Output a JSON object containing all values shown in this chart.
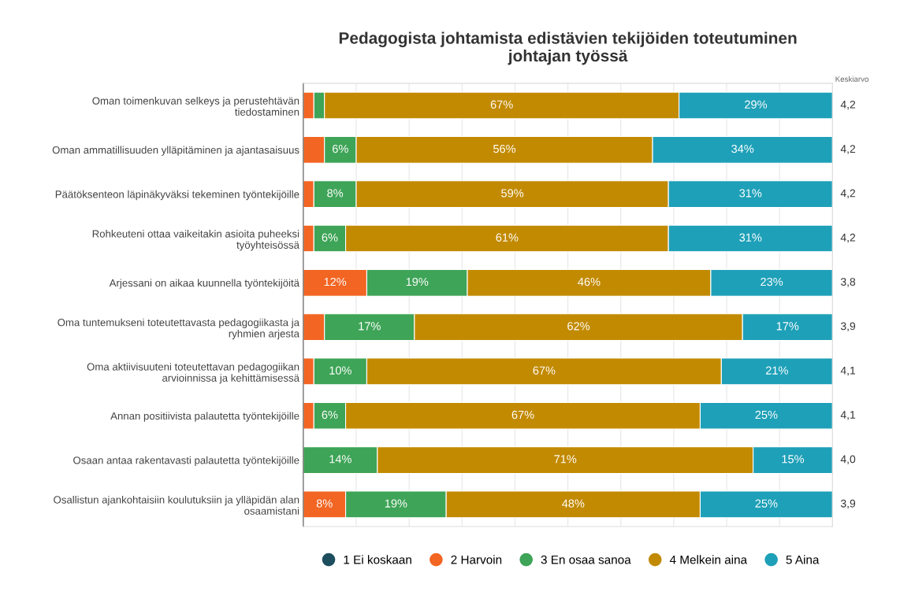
{
  "chart_data": {
    "type": "bar",
    "orientation": "horizontal",
    "stacked": true,
    "title": "Pedagogista johtamista edistävien tekijöiden toteutuminen\njohtajan työssä",
    "categories": [
      "Oman toimenkuvan selkeys ja perustehtävän\ntiedostaminen",
      "Oman ammatillisuuden ylläpitäminen ja ajantasaisuus",
      "Päätöksenteon läpinäkyväksi tekeminen työntekijöille",
      "Rohkeuteni ottaa vaikeitakin asioita puheeksi\ntyöyhteisössä",
      "Arjessani on aikaa kuunnella työntekijöitä",
      "Oma tuntemukseni toteutettavasta pedagogiikasta ja\nryhmien arjesta",
      "Oma aktiivisuuteni toteutettavan pedagogiikan\narvioinnissa ja kehittämisessä",
      "Annan positiivista palautetta työntekijöille",
      "Osaan antaa rakentavasti palautetta työntekijöille",
      "Osallistun ajankohtaisiin koulutuksiin ja ylläpidän alan\nosaamistani"
    ],
    "series": [
      {
        "name": "1 Ei koskaan",
        "color": "#1d4e5e",
        "values": [
          0,
          0,
          0,
          0,
          0,
          0,
          0,
          0,
          0,
          0
        ],
        "value_labels": [
          null,
          null,
          null,
          null,
          null,
          null,
          null,
          null,
          null,
          null
        ]
      },
      {
        "name": "2 Harvoin",
        "color": "#f26522",
        "values": [
          2,
          4,
          2,
          2,
          12,
          4,
          2,
          2,
          0,
          8
        ],
        "value_labels": [
          null,
          null,
          null,
          null,
          "12%",
          null,
          null,
          null,
          null,
          "8%"
        ]
      },
      {
        "name": "3 En osaa sanoa",
        "color": "#3ea457",
        "values": [
          2,
          6,
          8,
          6,
          19,
          17,
          10,
          6,
          14,
          19
        ],
        "value_labels": [
          null,
          "6%",
          "8%",
          "6%",
          "19%",
          "17%",
          "10%",
          "6%",
          "14%",
          "19%"
        ]
      },
      {
        "name": "4 Melkein aina",
        "color": "#c28a00",
        "values": [
          67,
          56,
          59,
          61,
          46,
          62,
          67,
          67,
          71,
          48
        ],
        "value_labels": [
          "67%",
          "56%",
          "59%",
          "61%",
          "46%",
          "62%",
          "67%",
          "67%",
          "71%",
          "48%"
        ]
      },
      {
        "name": "5 Aina",
        "color": "#1ea0b8",
        "values": [
          29,
          34,
          31,
          31,
          23,
          17,
          21,
          25,
          15,
          25
        ],
        "value_labels": [
          "29%",
          "34%",
          "31%",
          "31%",
          "23%",
          "17%",
          "21%",
          "25%",
          "15%",
          "25%"
        ]
      }
    ],
    "xlim": [
      0,
      100
    ],
    "xticks": [
      {
        "value": 0,
        "label": null
      },
      {
        "value": 10,
        "label": null
      },
      {
        "value": 20,
        "label": null
      },
      {
        "value": 30,
        "label": null
      },
      {
        "value": 40,
        "label": null
      },
      {
        "value": 50,
        "label": null
      },
      {
        "value": 60,
        "label": null
      },
      {
        "value": 70,
        "label": null
      },
      {
        "value": 80,
        "label": null
      },
      {
        "value": 90,
        "label": null
      },
      {
        "value": 100,
        "label": null
      }
    ],
    "tick_labels": "y",
    "grid": "x",
    "legend": "bottom",
    "marker": "circle",
    "annotations": [
      "Keskiarvo",
      "4,2",
      "4,2",
      "4,2",
      "4,2",
      "3,8",
      "3,9",
      "4,1",
      "4,1",
      "4,0",
      "3,9"
    ]
  }
}
